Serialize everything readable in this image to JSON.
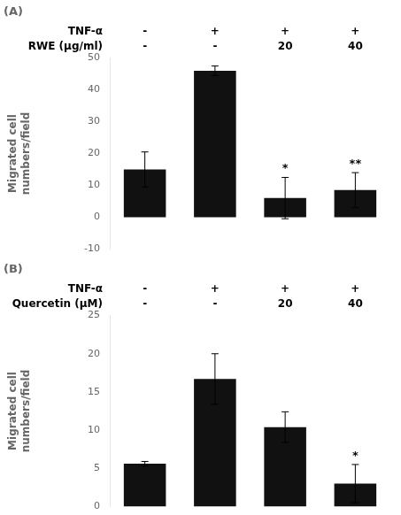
{
  "chart_data": [
    {
      "type": "bar",
      "title": "(A)",
      "categories": [
        [
          "-",
          "-"
        ],
        [
          "+",
          "-"
        ],
        [
          "+",
          "20"
        ],
        [
          "+",
          "40"
        ]
      ],
      "category_rows": [
        "TNF-α",
        "RWE (μg/ml)"
      ],
      "values": [
        15.0,
        46.0,
        6.0,
        8.5
      ],
      "errors": [
        5.5,
        1.5,
        6.5,
        5.5
      ],
      "bar_annotations": [
        null,
        null,
        "*",
        "**"
      ],
      "color": "#111111",
      "ylabel": "Migrated cell\nnumbers/field",
      "ylim": [
        -10,
        50
      ],
      "yticks": [
        -10,
        0,
        10,
        20,
        30,
        40,
        50
      ],
      "grid": false
    },
    {
      "type": "bar",
      "title": "(B)",
      "categories": [
        [
          "-",
          "-"
        ],
        [
          "+",
          "-"
        ],
        [
          "+",
          "20"
        ],
        [
          "+",
          "40"
        ]
      ],
      "category_rows": [
        "TNF-α",
        "Quercetin (μM)"
      ],
      "values": [
        5.6,
        16.7,
        10.4,
        3.0
      ],
      "errors": [
        0.3,
        3.3,
        2.0,
        2.5
      ],
      "bar_annotations": [
        null,
        null,
        null,
        "*"
      ],
      "color": "#111111",
      "ylabel": "Migrated cell\nnumbers/field",
      "ylim": [
        0,
        25
      ],
      "yticks": [
        0,
        5,
        10,
        15,
        20,
        25
      ],
      "grid": false
    }
  ]
}
